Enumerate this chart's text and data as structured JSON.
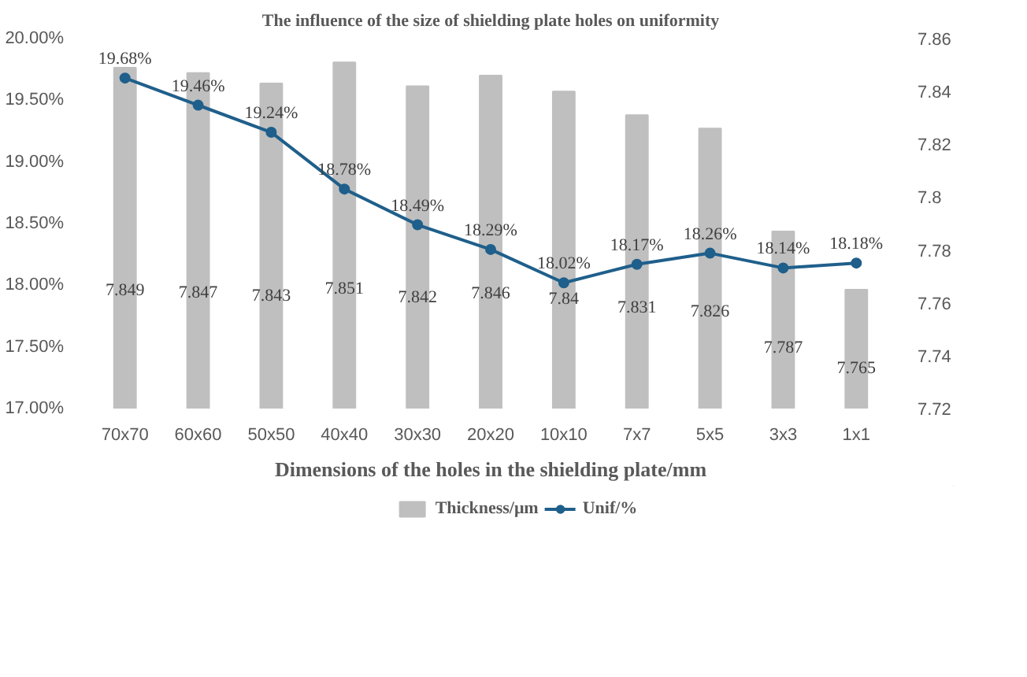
{
  "chart_data": {
    "type": "bar",
    "title": "The influence of the size of shielding plate holes on uniformity",
    "xlabel": "Dimensions of the holes in the shielding plate/mm",
    "categories": [
      "70x70",
      "60x60",
      "50x50",
      "40x40",
      "30x30",
      "20x20",
      "10x10",
      "7x7",
      "5x5",
      "3x3",
      "1x1"
    ],
    "series": [
      {
        "name": "Thickness/μm",
        "axis": "y2",
        "color": "#bfbfbf",
        "values": [
          7.849,
          7.847,
          7.843,
          7.851,
          7.842,
          7.846,
          7.84,
          7.831,
          7.826,
          7.787,
          7.765
        ],
        "value_labels": [
          "7.849",
          "7.847",
          "7.843",
          "7.851",
          "7.842",
          "7.846",
          "7.84",
          "7.831",
          "7.826",
          "7.787",
          "7.765"
        ]
      },
      {
        "name": "Unif/%",
        "type": "line",
        "axis": "y",
        "color": "#1f5f8b",
        "marker": "circle",
        "values": [
          19.68,
          19.46,
          19.24,
          18.78,
          18.49,
          18.29,
          18.02,
          18.17,
          18.26,
          18.14,
          18.18
        ],
        "value_labels": [
          "19.68%",
          "19.46%",
          "19.24%",
          "18.78%",
          "18.49%",
          "18.29%",
          "18.02%",
          "18.17%",
          "18.26%",
          "18.14%",
          "18.18%"
        ]
      }
    ],
    "ylim": [
      17,
      20
    ],
    "yticks": [
      {
        "value": 17,
        "label": "17.00%"
      },
      {
        "value": 17.5,
        "label": "17.50%"
      },
      {
        "value": 18,
        "label": "18.00%"
      },
      {
        "value": 18.5,
        "label": "18.50%"
      },
      {
        "value": 19,
        "label": "19.00%"
      },
      {
        "value": 19.5,
        "label": "19.50%"
      },
      {
        "value": 20,
        "label": "20.00%"
      }
    ],
    "y2lim": [
      7.72,
      7.86
    ],
    "y2ticks": [
      7.72,
      7.74,
      7.76,
      7.78,
      7.8,
      7.82,
      7.84,
      7.86
    ],
    "legend": "bottom"
  }
}
